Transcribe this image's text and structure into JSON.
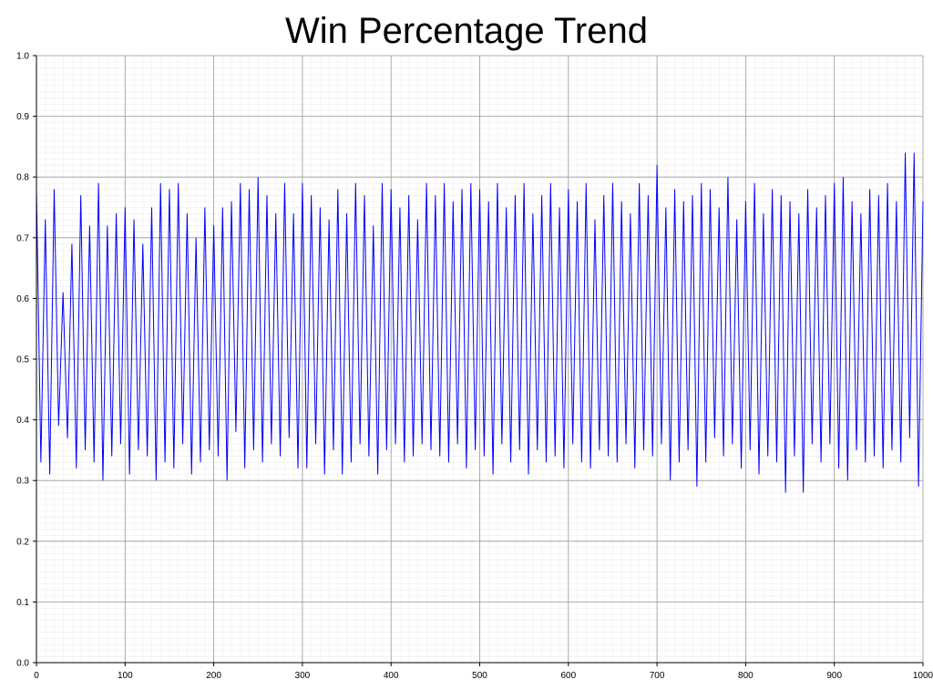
{
  "chart_data": {
    "type": "line",
    "title": "Win Percentage Trend",
    "x": [
      0,
      5,
      10,
      15,
      20,
      25,
      30,
      35,
      40,
      45,
      50,
      55,
      60,
      65,
      70,
      75,
      80,
      85,
      90,
      95,
      100,
      105,
      110,
      115,
      120,
      125,
      130,
      135,
      140,
      145,
      150,
      155,
      160,
      165,
      170,
      175,
      180,
      185,
      190,
      195,
      200,
      205,
      210,
      215,
      220,
      225,
      230,
      235,
      240,
      245,
      250,
      255,
      260,
      265,
      270,
      275,
      280,
      285,
      290,
      295,
      300,
      305,
      310,
      315,
      320,
      325,
      330,
      335,
      340,
      345,
      350,
      355,
      360,
      365,
      370,
      375,
      380,
      385,
      390,
      395,
      400,
      405,
      410,
      415,
      420,
      425,
      430,
      435,
      440,
      445,
      450,
      455,
      460,
      465,
      470,
      475,
      480,
      485,
      490,
      495,
      500,
      505,
      510,
      515,
      520,
      525,
      530,
      535,
      540,
      545,
      550,
      555,
      560,
      565,
      570,
      575,
      580,
      585,
      590,
      595,
      600,
      605,
      610,
      615,
      620,
      625,
      630,
      635,
      640,
      645,
      650,
      655,
      660,
      665,
      670,
      675,
      680,
      685,
      690,
      695,
      700,
      705,
      710,
      715,
      720,
      725,
      730,
      735,
      740,
      745,
      750,
      755,
      760,
      765,
      770,
      775,
      780,
      785,
      790,
      795,
      800,
      805,
      810,
      815,
      820,
      825,
      830,
      835,
      840,
      845,
      850,
      855,
      860,
      865,
      870,
      875,
      880,
      885,
      890,
      895,
      900,
      905,
      910,
      915,
      920,
      925,
      930,
      935,
      940,
      945,
      950,
      955,
      960,
      965,
      970,
      975,
      980,
      985,
      990,
      995,
      1000
    ],
    "series": [
      {
        "name": "Win Percentage",
        "color": "#0000ff",
        "values": [
          0.78,
          0.33,
          0.73,
          0.31,
          0.78,
          0.39,
          0.61,
          0.37,
          0.69,
          0.32,
          0.77,
          0.35,
          0.72,
          0.33,
          0.79,
          0.3,
          0.72,
          0.34,
          0.74,
          0.36,
          0.75,
          0.31,
          0.73,
          0.35,
          0.69,
          0.34,
          0.75,
          0.3,
          0.79,
          0.33,
          0.78,
          0.32,
          0.79,
          0.36,
          0.74,
          0.31,
          0.7,
          0.33,
          0.75,
          0.35,
          0.72,
          0.34,
          0.75,
          0.3,
          0.76,
          0.38,
          0.79,
          0.32,
          0.78,
          0.35,
          0.8,
          0.33,
          0.77,
          0.36,
          0.74,
          0.34,
          0.79,
          0.37,
          0.74,
          0.32,
          0.79,
          0.32,
          0.77,
          0.36,
          0.75,
          0.31,
          0.73,
          0.35,
          0.78,
          0.31,
          0.74,
          0.33,
          0.79,
          0.36,
          0.77,
          0.34,
          0.72,
          0.31,
          0.79,
          0.35,
          0.78,
          0.36,
          0.75,
          0.33,
          0.77,
          0.34,
          0.73,
          0.36,
          0.79,
          0.35,
          0.77,
          0.34,
          0.79,
          0.33,
          0.76,
          0.36,
          0.78,
          0.32,
          0.79,
          0.35,
          0.78,
          0.34,
          0.76,
          0.31,
          0.79,
          0.36,
          0.75,
          0.33,
          0.77,
          0.35,
          0.79,
          0.31,
          0.74,
          0.35,
          0.77,
          0.33,
          0.79,
          0.34,
          0.75,
          0.32,
          0.78,
          0.36,
          0.76,
          0.33,
          0.79,
          0.32,
          0.73,
          0.35,
          0.77,
          0.34,
          0.79,
          0.33,
          0.76,
          0.36,
          0.74,
          0.32,
          0.79,
          0.35,
          0.77,
          0.34,
          0.82,
          0.36,
          0.75,
          0.3,
          0.78,
          0.33,
          0.76,
          0.35,
          0.77,
          0.29,
          0.79,
          0.33,
          0.78,
          0.37,
          0.75,
          0.34,
          0.8,
          0.36,
          0.73,
          0.32,
          0.76,
          0.35,
          0.79,
          0.31,
          0.74,
          0.34,
          0.78,
          0.33,
          0.77,
          0.28,
          0.76,
          0.34,
          0.74,
          0.28,
          0.78,
          0.36,
          0.75,
          0.33,
          0.77,
          0.36,
          0.79,
          0.32,
          0.8,
          0.3,
          0.76,
          0.35,
          0.74,
          0.33,
          0.78,
          0.34,
          0.77,
          0.32,
          0.79,
          0.35,
          0.76,
          0.33,
          0.84,
          0.37,
          0.84,
          0.29,
          0.76
        ]
      }
    ],
    "xlim": [
      0,
      1000
    ],
    "xticks": [
      0,
      100,
      200,
      300,
      400,
      500,
      600,
      700,
      800,
      900,
      1000
    ],
    "ylim": [
      0,
      1
    ],
    "yticks": [
      {
        "value": 0,
        "label": "0.0"
      },
      0.1,
      0.2,
      0.3,
      0.4,
      0.5,
      0.6,
      0.7,
      0.8,
      0.9,
      {
        "value": 1,
        "label": "1.0"
      }
    ],
    "grid": true
  }
}
